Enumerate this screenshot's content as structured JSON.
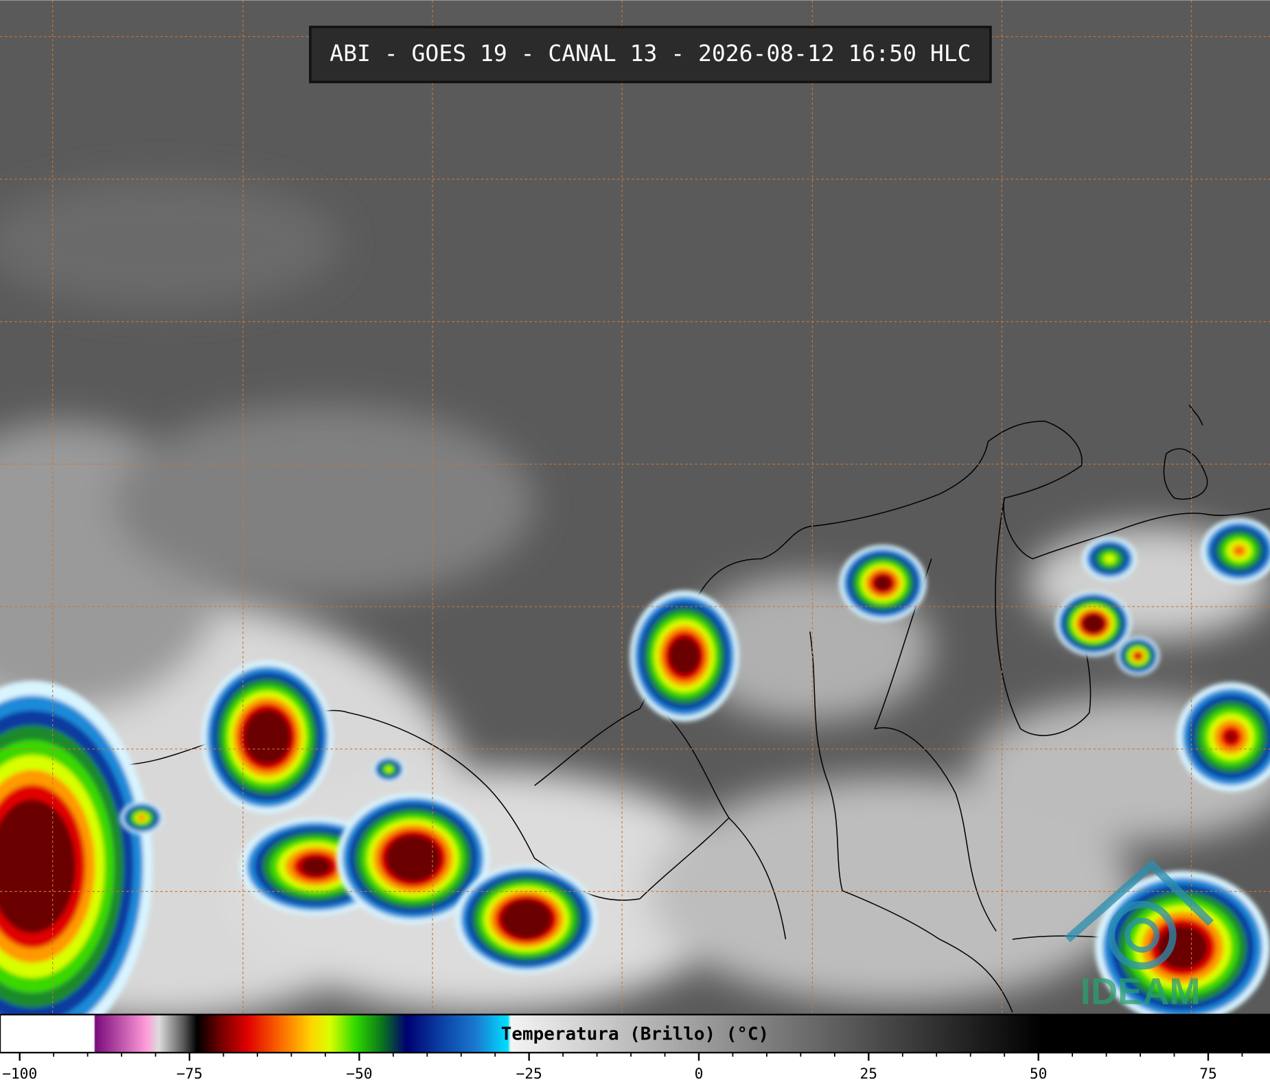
{
  "header": {
    "title": "ABI - GOES 19 - CANAL 13 - 2026-08-12 16:50 HLC"
  },
  "colorbar": {
    "label": "Temperatura (Brillo) (°C)",
    "range": [
      -102.9,
      84.1
    ],
    "ticks": [
      {
        "value": -100,
        "label": "−100"
      },
      {
        "value": -75,
        "label": "−75"
      },
      {
        "value": -50,
        "label": "−50"
      },
      {
        "value": -25,
        "label": "−25"
      },
      0,
      25,
      50,
      75
    ]
  },
  "logo": "IDEAM"
}
